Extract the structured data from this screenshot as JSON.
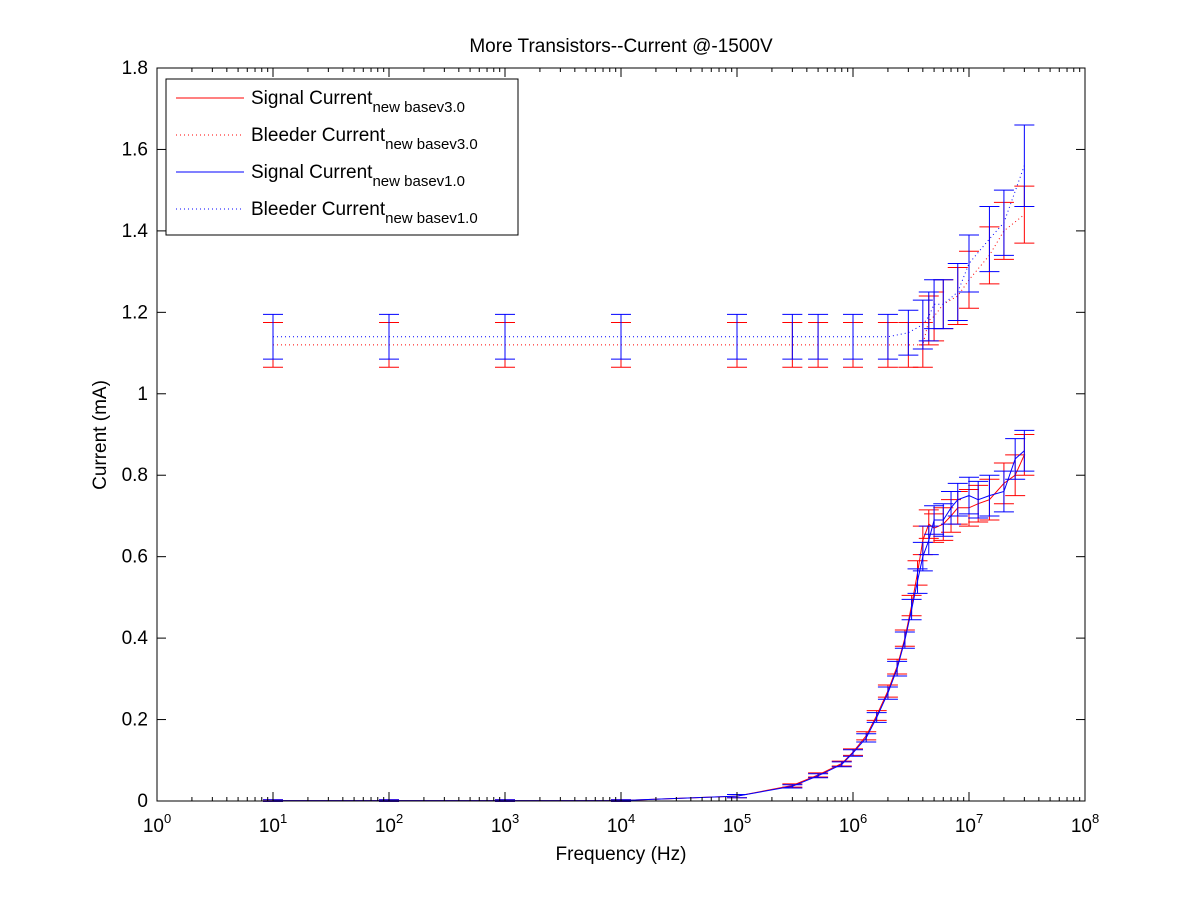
{
  "chart_data": {
    "type": "line",
    "title": "More Transistors--Current @-1500V",
    "xlabel": "Frequency (Hz)",
    "ylabel": "Current (mA)",
    "xscale": "log",
    "xlim": [
      1,
      100000000
    ],
    "ylim": [
      0,
      1.8
    ],
    "xticks": [
      {
        "value": 1,
        "base": "10",
        "exp": "0"
      },
      {
        "value": 10,
        "base": "10",
        "exp": "1"
      },
      {
        "value": 100,
        "base": "10",
        "exp": "2"
      },
      {
        "value": 1000,
        "base": "10",
        "exp": "3"
      },
      {
        "value": 10000,
        "base": "10",
        "exp": "4"
      },
      {
        "value": 100000,
        "base": "10",
        "exp": "5"
      },
      {
        "value": 1000000,
        "base": "10",
        "exp": "6"
      },
      {
        "value": 10000000,
        "base": "10",
        "exp": "7"
      },
      {
        "value": 100000000,
        "base": "10",
        "exp": "8"
      }
    ],
    "yticks": [
      {
        "value": 0,
        "label": "0"
      },
      {
        "value": 0.2,
        "label": "0.2"
      },
      {
        "value": 0.4,
        "label": "0.4"
      },
      {
        "value": 0.6,
        "label": "0.6"
      },
      {
        "value": 0.8,
        "label": "0.8"
      },
      {
        "value": 1.0,
        "label": "1"
      },
      {
        "value": 1.2,
        "label": "1.2"
      },
      {
        "value": 1.4,
        "label": "1.4"
      },
      {
        "value": 1.6,
        "label": "1.6"
      },
      {
        "value": 1.8,
        "label": "1.8"
      }
    ],
    "grid": false,
    "legend_position": "top-left",
    "series": [
      {
        "name": "Signal Current",
        "subscript": "new basev3.0",
        "color": "#ff0000",
        "style": "solid",
        "x": [
          10,
          100,
          1000,
          10000,
          100000,
          300000,
          500000,
          800000,
          1000000,
          1300000,
          1600000,
          2000000,
          2400000,
          2800000,
          3200000,
          3600000,
          4000000,
          4500000,
          5000000,
          6000000,
          7000000,
          8000000,
          10000000,
          12000000,
          15000000,
          20000000,
          25000000,
          30000000
        ],
        "y": [
          0.001,
          0.001,
          0.001,
          0.001,
          0.012,
          0.038,
          0.064,
          0.092,
          0.12,
          0.16,
          0.21,
          0.27,
          0.33,
          0.4,
          0.48,
          0.56,
          0.64,
          0.68,
          0.67,
          0.68,
          0.7,
          0.72,
          0.72,
          0.73,
          0.74,
          0.78,
          0.8,
          0.85
        ],
        "err": [
          0.002,
          0.002,
          0.002,
          0.002,
          0.004,
          0.004,
          0.005,
          0.006,
          0.008,
          0.01,
          0.012,
          0.015,
          0.018,
          0.02,
          0.025,
          0.03,
          0.035,
          0.035,
          0.035,
          0.04,
          0.04,
          0.04,
          0.045,
          0.045,
          0.05,
          0.05,
          0.05,
          0.05
        ]
      },
      {
        "name": "Bleeder Current",
        "subscript": "new basev3.0",
        "color": "#ff0000",
        "style": "dotted",
        "x": [
          10,
          100,
          1000,
          10000,
          100000,
          300000,
          500000,
          1000000,
          2000000,
          3000000,
          4000000,
          4500000,
          5000000,
          6000000,
          8000000,
          10000000,
          15000000,
          20000000,
          30000000
        ],
        "y": [
          1.12,
          1.12,
          1.12,
          1.12,
          1.12,
          1.12,
          1.12,
          1.12,
          1.12,
          1.12,
          1.12,
          1.18,
          1.19,
          1.22,
          1.24,
          1.28,
          1.34,
          1.4,
          1.44
        ],
        "err": [
          0.055,
          0.055,
          0.055,
          0.055,
          0.055,
          0.055,
          0.055,
          0.055,
          0.055,
          0.055,
          0.055,
          0.06,
          0.06,
          0.06,
          0.07,
          0.07,
          0.07,
          0.07,
          0.07
        ]
      },
      {
        "name": "Signal Current",
        "subscript": "new basev1.0",
        "color": "#0000ff",
        "style": "solid",
        "x": [
          10,
          100,
          1000,
          10000,
          100000,
          300000,
          500000,
          800000,
          1000000,
          1300000,
          1600000,
          2000000,
          2400000,
          2800000,
          3200000,
          3600000,
          4000000,
          4500000,
          5000000,
          6000000,
          7000000,
          8000000,
          10000000,
          12000000,
          15000000,
          20000000,
          25000000,
          30000000
        ],
        "y": [
          0.001,
          0.001,
          0.001,
          0.001,
          0.012,
          0.036,
          0.062,
          0.09,
          0.118,
          0.155,
          0.205,
          0.265,
          0.325,
          0.395,
          0.47,
          0.54,
          0.6,
          0.64,
          0.69,
          0.69,
          0.72,
          0.74,
          0.75,
          0.74,
          0.75,
          0.76,
          0.84,
          0.86
        ],
        "err": [
          0.002,
          0.002,
          0.002,
          0.002,
          0.004,
          0.004,
          0.005,
          0.006,
          0.008,
          0.01,
          0.012,
          0.015,
          0.018,
          0.02,
          0.025,
          0.03,
          0.035,
          0.035,
          0.035,
          0.04,
          0.04,
          0.04,
          0.045,
          0.045,
          0.05,
          0.05,
          0.05,
          0.05
        ]
      },
      {
        "name": "Bleeder Current",
        "subscript": "new basev1.0",
        "color": "#0000ff",
        "style": "dotted",
        "x": [
          10,
          100,
          1000,
          10000,
          100000,
          300000,
          500000,
          1000000,
          2000000,
          3000000,
          4000000,
          4500000,
          5000000,
          6000000,
          8000000,
          10000000,
          15000000,
          20000000,
          30000000
        ],
        "y": [
          1.14,
          1.14,
          1.14,
          1.14,
          1.14,
          1.14,
          1.14,
          1.14,
          1.14,
          1.15,
          1.17,
          1.19,
          1.22,
          1.22,
          1.25,
          1.32,
          1.38,
          1.42,
          1.56
        ],
        "err": [
          0.055,
          0.055,
          0.055,
          0.055,
          0.055,
          0.055,
          0.055,
          0.055,
          0.055,
          0.055,
          0.06,
          0.06,
          0.06,
          0.06,
          0.07,
          0.07,
          0.08,
          0.08,
          0.1
        ]
      }
    ]
  }
}
